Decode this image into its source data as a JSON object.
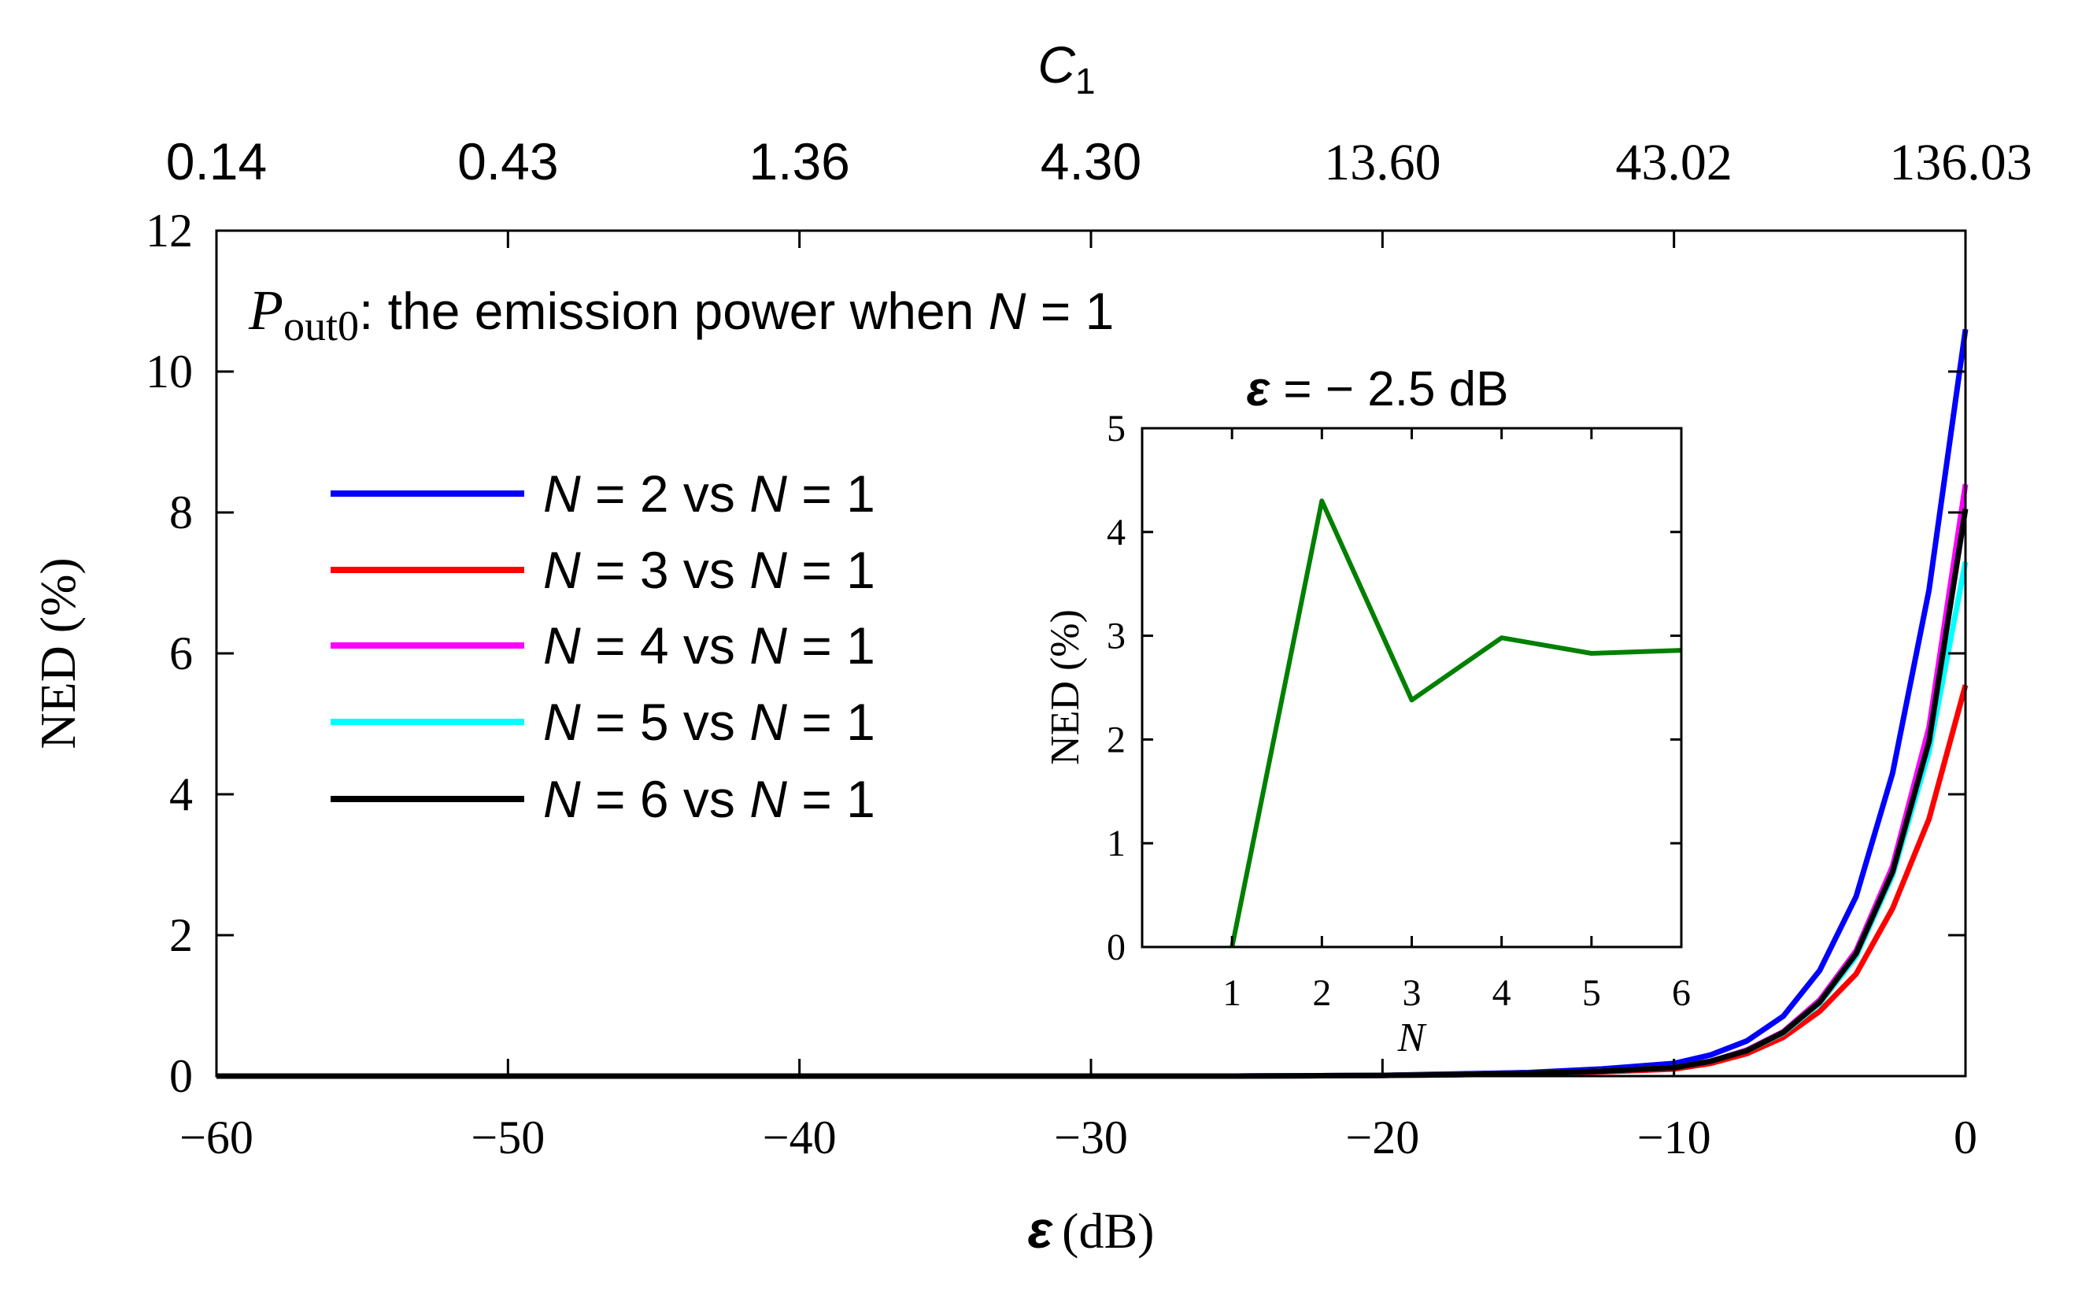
{
  "chart_data": [
    {
      "type": "line",
      "xlabel_symbol": "ε",
      "xlabel_unit": "(dB)",
      "ylabel": "NED (%)",
      "top_axis_label": "C",
      "top_axis_label_subscript": "1",
      "xlim": [
        -60,
        0
      ],
      "ylim": [
        0,
        12
      ],
      "x_ticks": [
        "−60",
        "−50",
        "−40",
        "−30",
        "−20",
        "−10",
        "0"
      ],
      "y_ticks": [
        "0",
        "2",
        "4",
        "6",
        "8",
        "10",
        "12"
      ],
      "top_ticks": [
        "0.14",
        "0.43",
        "1.36",
        "4.30",
        "13.60",
        "43.02",
        "136.03"
      ],
      "top_tick_positions": [
        -60,
        -50,
        -40,
        -30,
        -20,
        -10,
        0
      ],
      "annotation_symbol": "P",
      "annotation_subscript": "out0",
      "annotation_text": ": the emission power when ",
      "annotation_var": "N",
      "annotation_tail": " = 1",
      "legend_position": "upper-left",
      "x": [
        -60,
        -55,
        -50,
        -45,
        -40,
        -35,
        -30,
        -25,
        -20,
        -17.5,
        -15,
        -12.5,
        -10,
        -8.75,
        -7.5,
        -6.25,
        -5,
        -3.75,
        -2.5,
        -1.25,
        0
      ],
      "series": [
        {
          "name": "N = 2 vs N = 1",
          "legend_var": "N",
          "legend_mid": " = 2 vs ",
          "legend_tail": " = 1",
          "color": "#0000ff",
          "values": [
            0,
            0,
            0,
            0,
            0,
            0,
            0,
            0,
            0.01,
            0.03,
            0.05,
            0.1,
            0.18,
            0.3,
            0.5,
            0.85,
            1.5,
            2.55,
            4.3,
            6.9,
            10.6
          ]
        },
        {
          "name": "N = 3 vs N = 1",
          "legend_var": "N",
          "legend_mid": " = 3 vs ",
          "legend_tail": " = 1",
          "color": "#ff0000",
          "values": [
            0,
            0,
            0,
            0,
            0,
            0,
            0,
            0,
            0.01,
            0.02,
            0.03,
            0.06,
            0.1,
            0.18,
            0.32,
            0.55,
            0.92,
            1.45,
            2.38,
            3.65,
            5.55
          ]
        },
        {
          "name": "N = 4 vs N = 1",
          "legend_var": "N",
          "legend_mid": " = 4 vs ",
          "legend_tail": " = 1",
          "color": "#ff00ff",
          "values": [
            0,
            0,
            0,
            0,
            0,
            0,
            0,
            0,
            0.01,
            0.02,
            0.04,
            0.07,
            0.12,
            0.21,
            0.37,
            0.63,
            1.08,
            1.78,
            2.98,
            4.95,
            8.4
          ]
        },
        {
          "name": "N = 5 vs N = 1",
          "legend_var": "N",
          "legend_mid": " = 5 vs ",
          "legend_tail": " = 1",
          "color": "#00ffff",
          "values": [
            0,
            0,
            0,
            0,
            0,
            0,
            0,
            0,
            0.01,
            0.02,
            0.04,
            0.07,
            0.12,
            0.21,
            0.36,
            0.61,
            1.03,
            1.7,
            2.85,
            4.6,
            7.3
          ]
        },
        {
          "name": "N = 6 vs N = 1",
          "legend_var": "N",
          "legend_mid": " = 6 vs ",
          "legend_tail": " = 1",
          "color": "#000000",
          "values": [
            0,
            0,
            0,
            0,
            0,
            0,
            0,
            0,
            0.01,
            0.02,
            0.04,
            0.07,
            0.12,
            0.21,
            0.36,
            0.62,
            1.05,
            1.74,
            2.9,
            4.75,
            8.05
          ]
        }
      ]
    },
    {
      "type": "line",
      "title_symbol": "ε",
      "title_text": " = − 2.5 dB",
      "xlabel": "N",
      "ylabel": "NED (%)",
      "xlim": [
        0,
        6
      ],
      "ylim": [
        0,
        5
      ],
      "x_ticks": [
        "1",
        "2",
        "3",
        "4",
        "5",
        "6"
      ],
      "y_ticks": [
        "0",
        "1",
        "2",
        "3",
        "4",
        "5"
      ],
      "x": [
        1,
        2,
        3,
        4,
        5,
        6
      ],
      "series": [
        {
          "name": "NED at ε = −2.5 dB",
          "color": "#008000",
          "values": [
            0,
            4.3,
            2.38,
            2.98,
            2.83,
            2.86
          ]
        }
      ]
    }
  ]
}
